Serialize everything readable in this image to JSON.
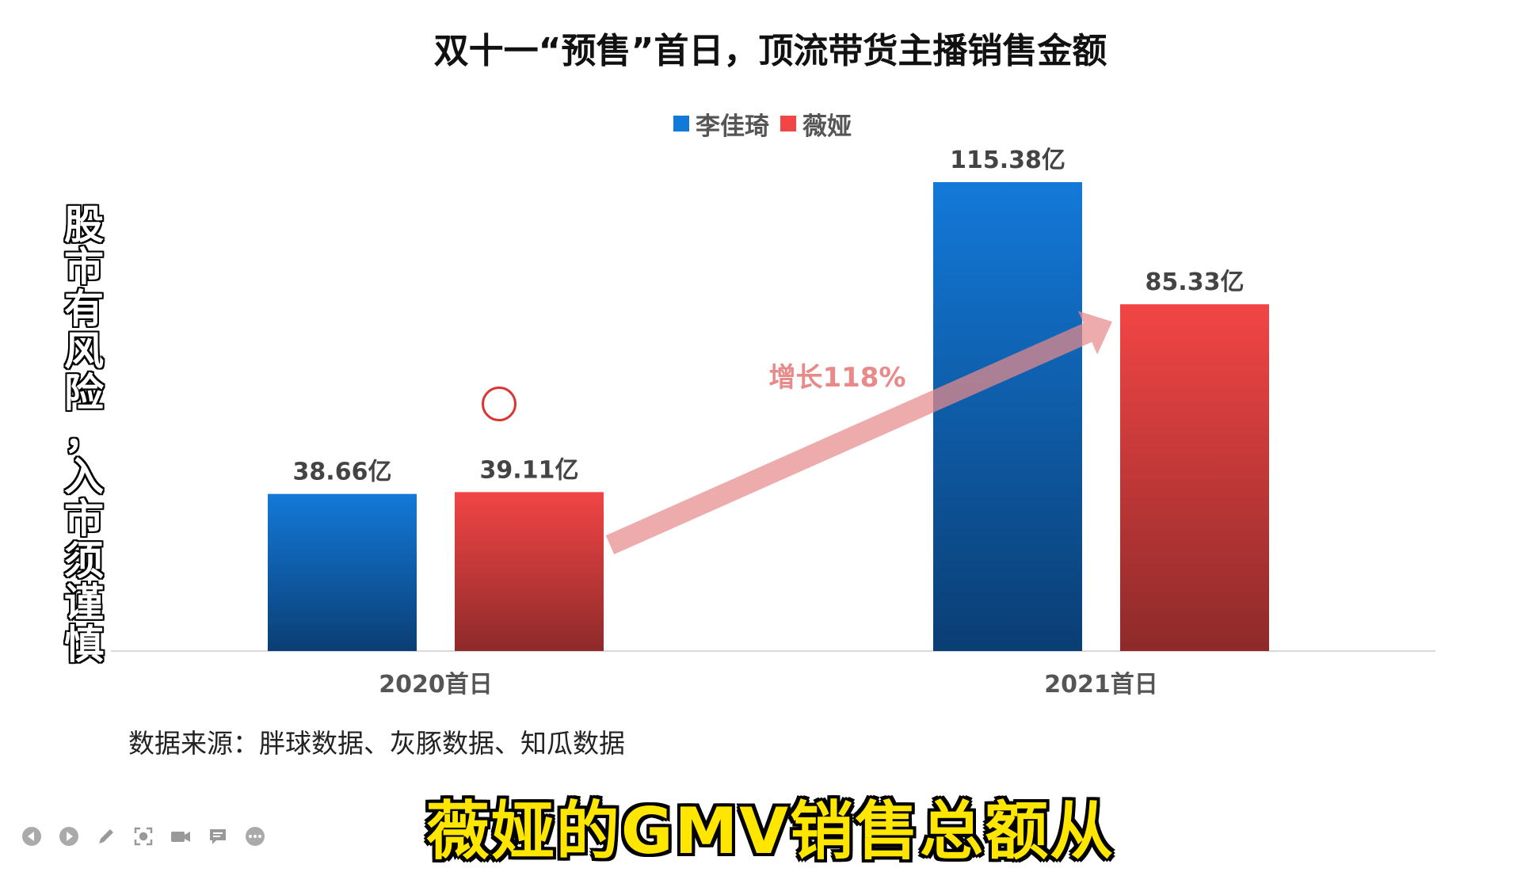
{
  "title": "双十一“预售”首日，顶流带货主播销售金额",
  "side_text": "股市有风险，入市须谨慎",
  "source": "数据来源：胖球数据、灰豚数据、知瓜数据",
  "subtitle": "薇娅的GMV销售总额从",
  "annotation": "增长118%",
  "colors": {
    "blue_top": "#1379d8",
    "blue_bottom": "#0a3e74",
    "red_top": "#f24545",
    "red_bottom": "#8e2a2a",
    "arrow": "#e88a8a"
  },
  "toolbar": {
    "icons": [
      "prev-icon",
      "next-icon",
      "pen-icon",
      "focus-icon",
      "camera-icon",
      "comment-icon",
      "more-icon"
    ]
  },
  "chart_data": {
    "type": "bar",
    "categories": [
      "2020首日",
      "2021首日"
    ],
    "series": [
      {
        "name": "李佳琦",
        "values": [
          38.66,
          115.38
        ],
        "labels": [
          "38.66亿",
          "115.38亿"
        ]
      },
      {
        "name": "薇娅",
        "values": [
          39.11,
          85.33
        ],
        "labels": [
          "39.11亿",
          "85.33亿"
        ]
      }
    ],
    "ylim": [
      0,
      115.38
    ],
    "legend": "top-center",
    "grid": false
  }
}
